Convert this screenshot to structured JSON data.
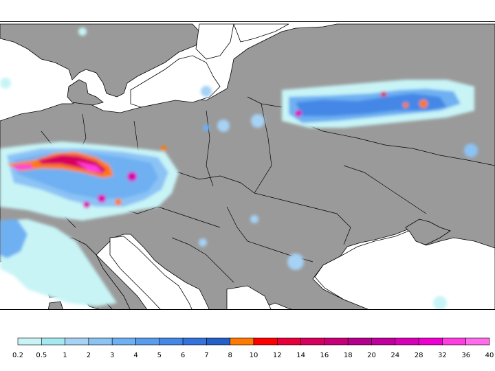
{
  "map": {
    "background_land": "#9a9a9a",
    "background_sea": "#ffffff",
    "border_color": "#000000"
  },
  "legend": {
    "labels": [
      "0.2",
      "0.5",
      "1",
      "2",
      "3",
      "4",
      "5",
      "6",
      "7",
      "8",
      "10",
      "12",
      "14",
      "16",
      "18",
      "20",
      "24",
      "28",
      "32",
      "36",
      "40"
    ],
    "colors": [
      "#c8f4f6",
      "#a6e8f2",
      "#a6d2f5",
      "#8cc3f5",
      "#6eb0f2",
      "#5a9cec",
      "#4587e6",
      "#3473dc",
      "#2460c8",
      "#ff7a00",
      "#ff0000",
      "#e8003a",
      "#d8005e",
      "#c80078",
      "#b4008c",
      "#c0009e",
      "#d800b6",
      "#ee00d0",
      "#ff3ce0",
      "#ff6cec"
    ]
  }
}
